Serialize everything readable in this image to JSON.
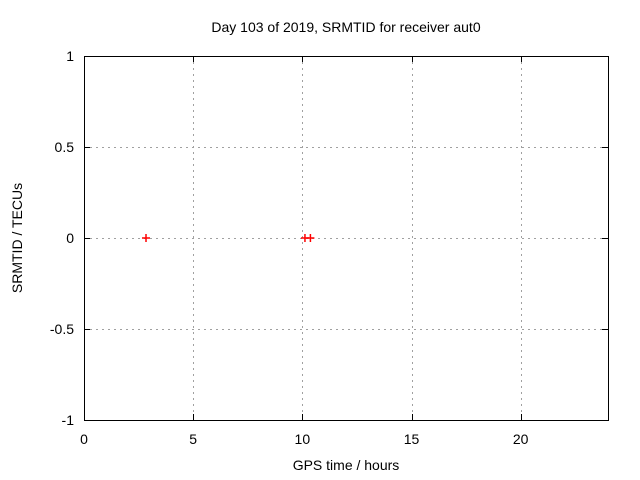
{
  "chart_data": {
    "type": "scatter",
    "title": "Day 103 of 2019, SRMTID for receiver aut0",
    "xlabel": "GPS time / hours",
    "ylabel": "SRMTID / TECUs",
    "xlim": [
      0,
      24
    ],
    "ylim": [
      -1,
      1
    ],
    "xticks": [
      0,
      5,
      10,
      15,
      20
    ],
    "yticks": [
      -1,
      -0.5,
      0,
      0.5,
      1
    ],
    "grid": true,
    "legend": "none",
    "marker": "plus",
    "points": [
      {
        "x": 2.84,
        "y": 0
      },
      {
        "x": 10.12,
        "y": 0
      },
      {
        "x": 10.37,
        "y": 0
      }
    ],
    "colors": {
      "background": "#ffffff",
      "axis": "#000000",
      "grid": "#a0a0a0",
      "marker": "#ff0000"
    }
  }
}
